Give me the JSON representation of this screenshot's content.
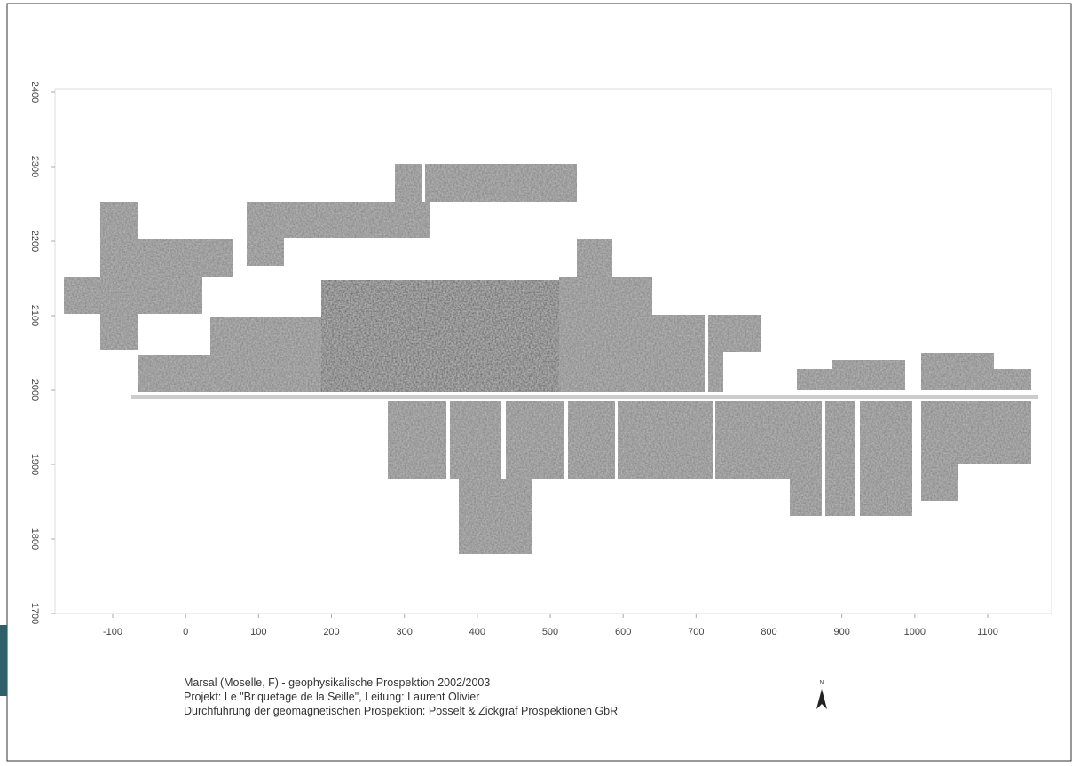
{
  "axes": {
    "xticks": [
      -100,
      0,
      100,
      200,
      300,
      400,
      500,
      600,
      700,
      800,
      900,
      1000,
      1100
    ],
    "yticks": [
      1700,
      1800,
      1900,
      2000,
      2100,
      2200,
      2300,
      2400
    ]
  },
  "caption": [
    "Marsal (Moselle, F) - geophysikalische Prospektion 2002/2003",
    "Projekt: Le \"Briquetage de la Seille\", Leitung: Laurent Olivier",
    "Durchführung der geomagnetischen Prospektion: Posselt & Zickgraf Prospektionen GbR"
  ],
  "north": "N"
}
